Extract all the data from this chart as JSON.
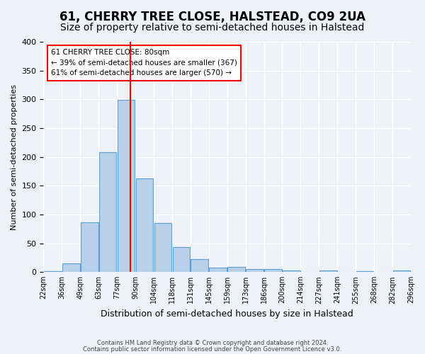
{
  "title": "61, CHERRY TREE CLOSE, HALSTEAD, CO9 2UA",
  "subtitle": "Size of property relative to semi-detached houses in Halstead",
  "xlabel": "Distribution of semi-detached houses by size in Halstead",
  "ylabel": "Number of semi-detached properties",
  "bin_labels": [
    "22sqm",
    "36sqm",
    "49sqm",
    "63sqm",
    "77sqm",
    "90sqm",
    "104sqm",
    "118sqm",
    "131sqm",
    "145sqm",
    "159sqm",
    "173sqm",
    "186sqm",
    "200sqm",
    "214sqm",
    "227sqm",
    "241sqm",
    "255sqm",
    "268sqm",
    "282sqm",
    "296sqm"
  ],
  "values": [
    2,
    15,
    87,
    208,
    299,
    163,
    85,
    44,
    22,
    8,
    9,
    5,
    5,
    3,
    0,
    3,
    0,
    2,
    0,
    3
  ],
  "bar_color": "#b8d0e8",
  "bar_edge_color": "#5a9fd4",
  "vline_position": 4.23,
  "vline_color": "red",
  "annotation_title": "61 CHERRY TREE CLOSE: 80sqm",
  "annotation_line1": "← 39% of semi-detached houses are smaller (367)",
  "annotation_line2": "61% of semi-detached houses are larger (570) →",
  "ylim": [
    0,
    400
  ],
  "yticks": [
    0,
    50,
    100,
    150,
    200,
    250,
    300,
    350,
    400
  ],
  "footnote1": "Contains HM Land Registry data © Crown copyright and database right 2024.",
  "footnote2": "Contains public sector information licensed under the Open Government Licence v3.0.",
  "bg_color": "#eef2f7",
  "grid_color": "#ffffff",
  "title_fontsize": 12,
  "subtitle_fontsize": 10
}
